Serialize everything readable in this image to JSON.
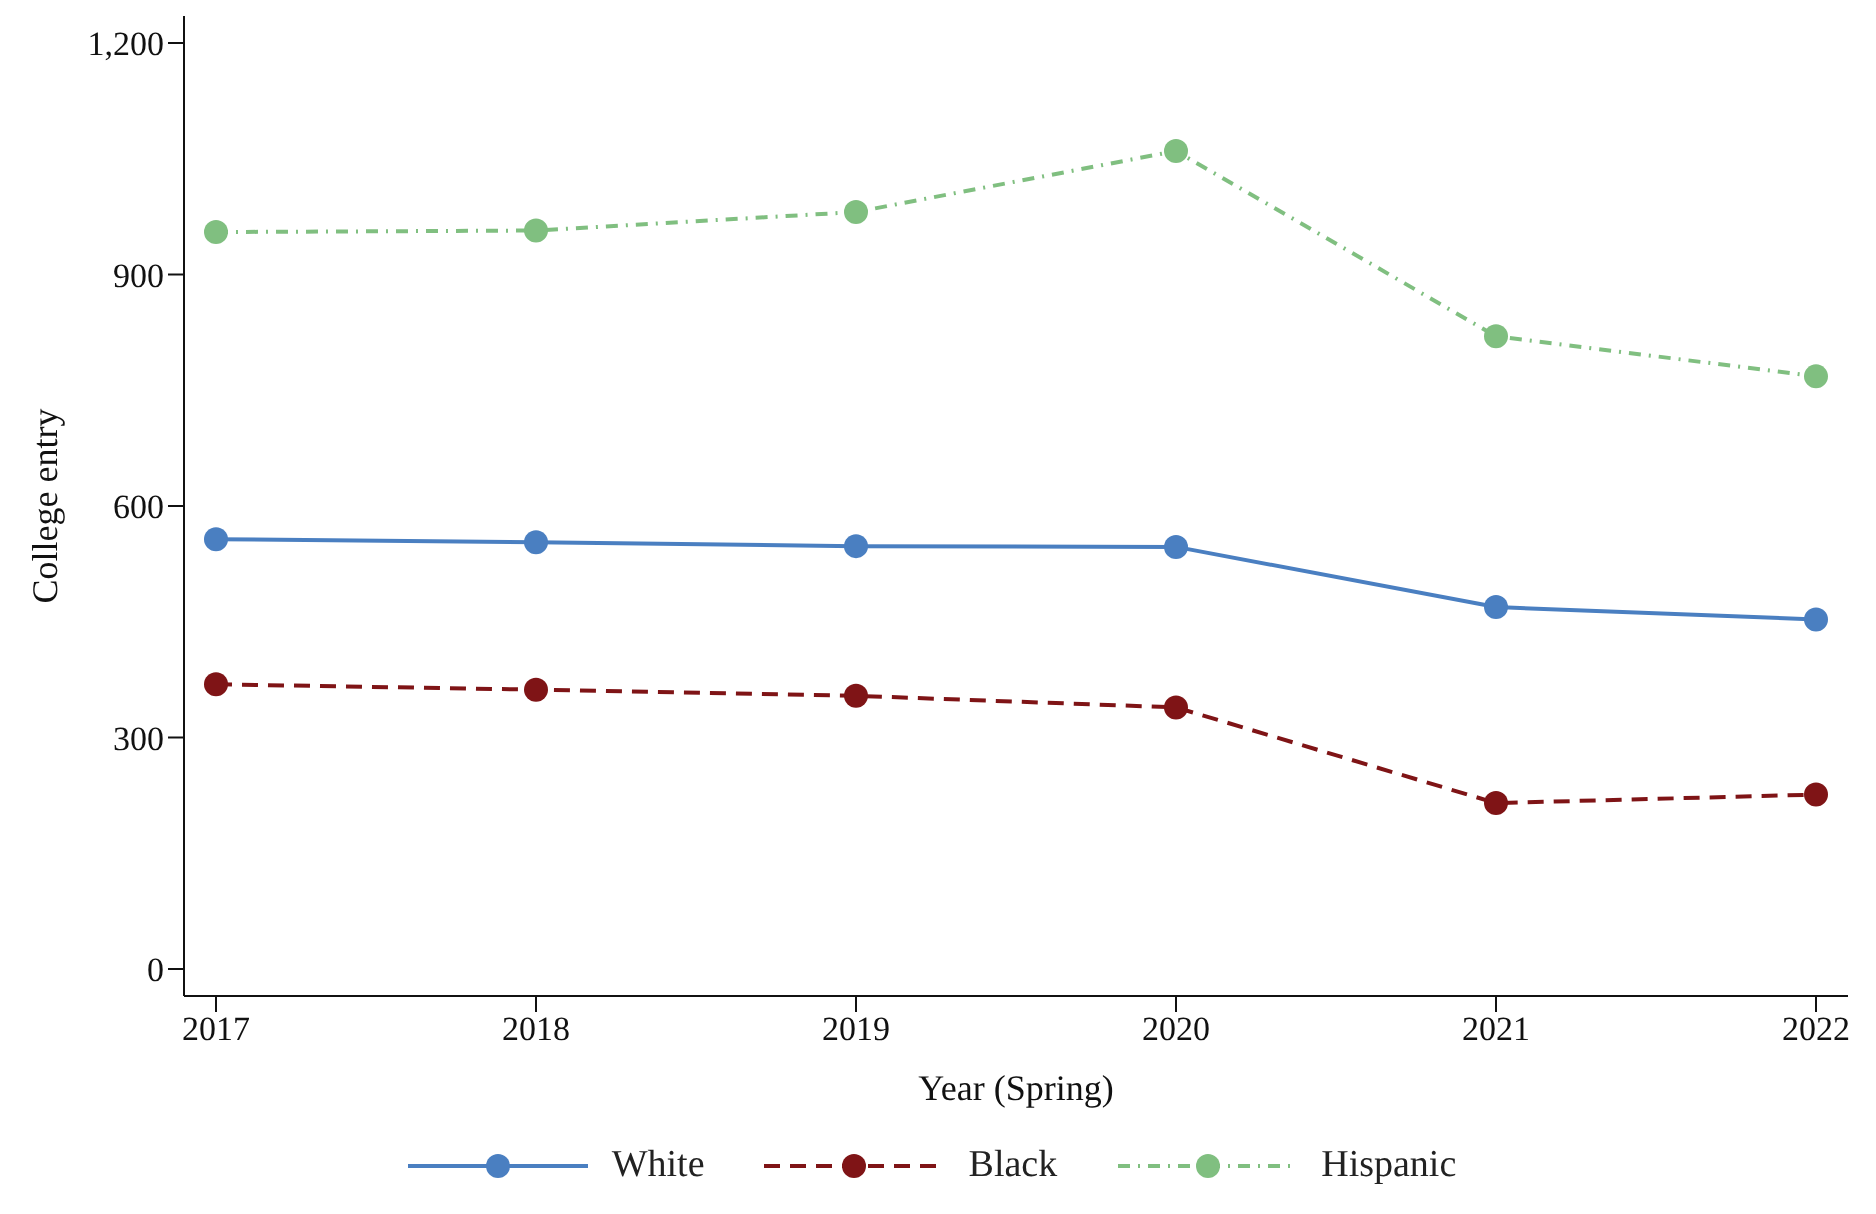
{
  "chart_data": {
    "type": "line",
    "xlabel": "Year (Spring)",
    "ylabel": "College entry",
    "x": [
      2017,
      2018,
      2019,
      2020,
      2021,
      2022
    ],
    "xlim": [
      2016.9,
      2022.1
    ],
    "xticks": [
      2017,
      2018,
      2019,
      2020,
      2021,
      2022
    ],
    "ylim": [
      -35,
      1235
    ],
    "yticks": [
      0,
      {
        "value": 300,
        "label": "300"
      },
      {
        "value": 600,
        "label": "600"
      },
      {
        "value": 900,
        "label": "900"
      },
      {
        "value": 1200,
        "label": "1,200"
      }
    ],
    "grid": false,
    "legend": "bottom",
    "marker": "circle",
    "series": [
      {
        "name": "White",
        "color": "#4a7fc1",
        "line_style": "solid",
        "values": [
          557,
          553,
          548,
          547,
          469,
          453
        ]
      },
      {
        "name": "Black",
        "color": "#7f1416",
        "line_style": "dashed",
        "values": [
          369,
          362,
          354,
          339,
          215,
          226
        ]
      },
      {
        "name": "Hispanic",
        "color": "#80bf80",
        "line_style": "dashdot",
        "values": [
          955,
          957,
          981,
          1060,
          820,
          768
        ]
      }
    ]
  }
}
